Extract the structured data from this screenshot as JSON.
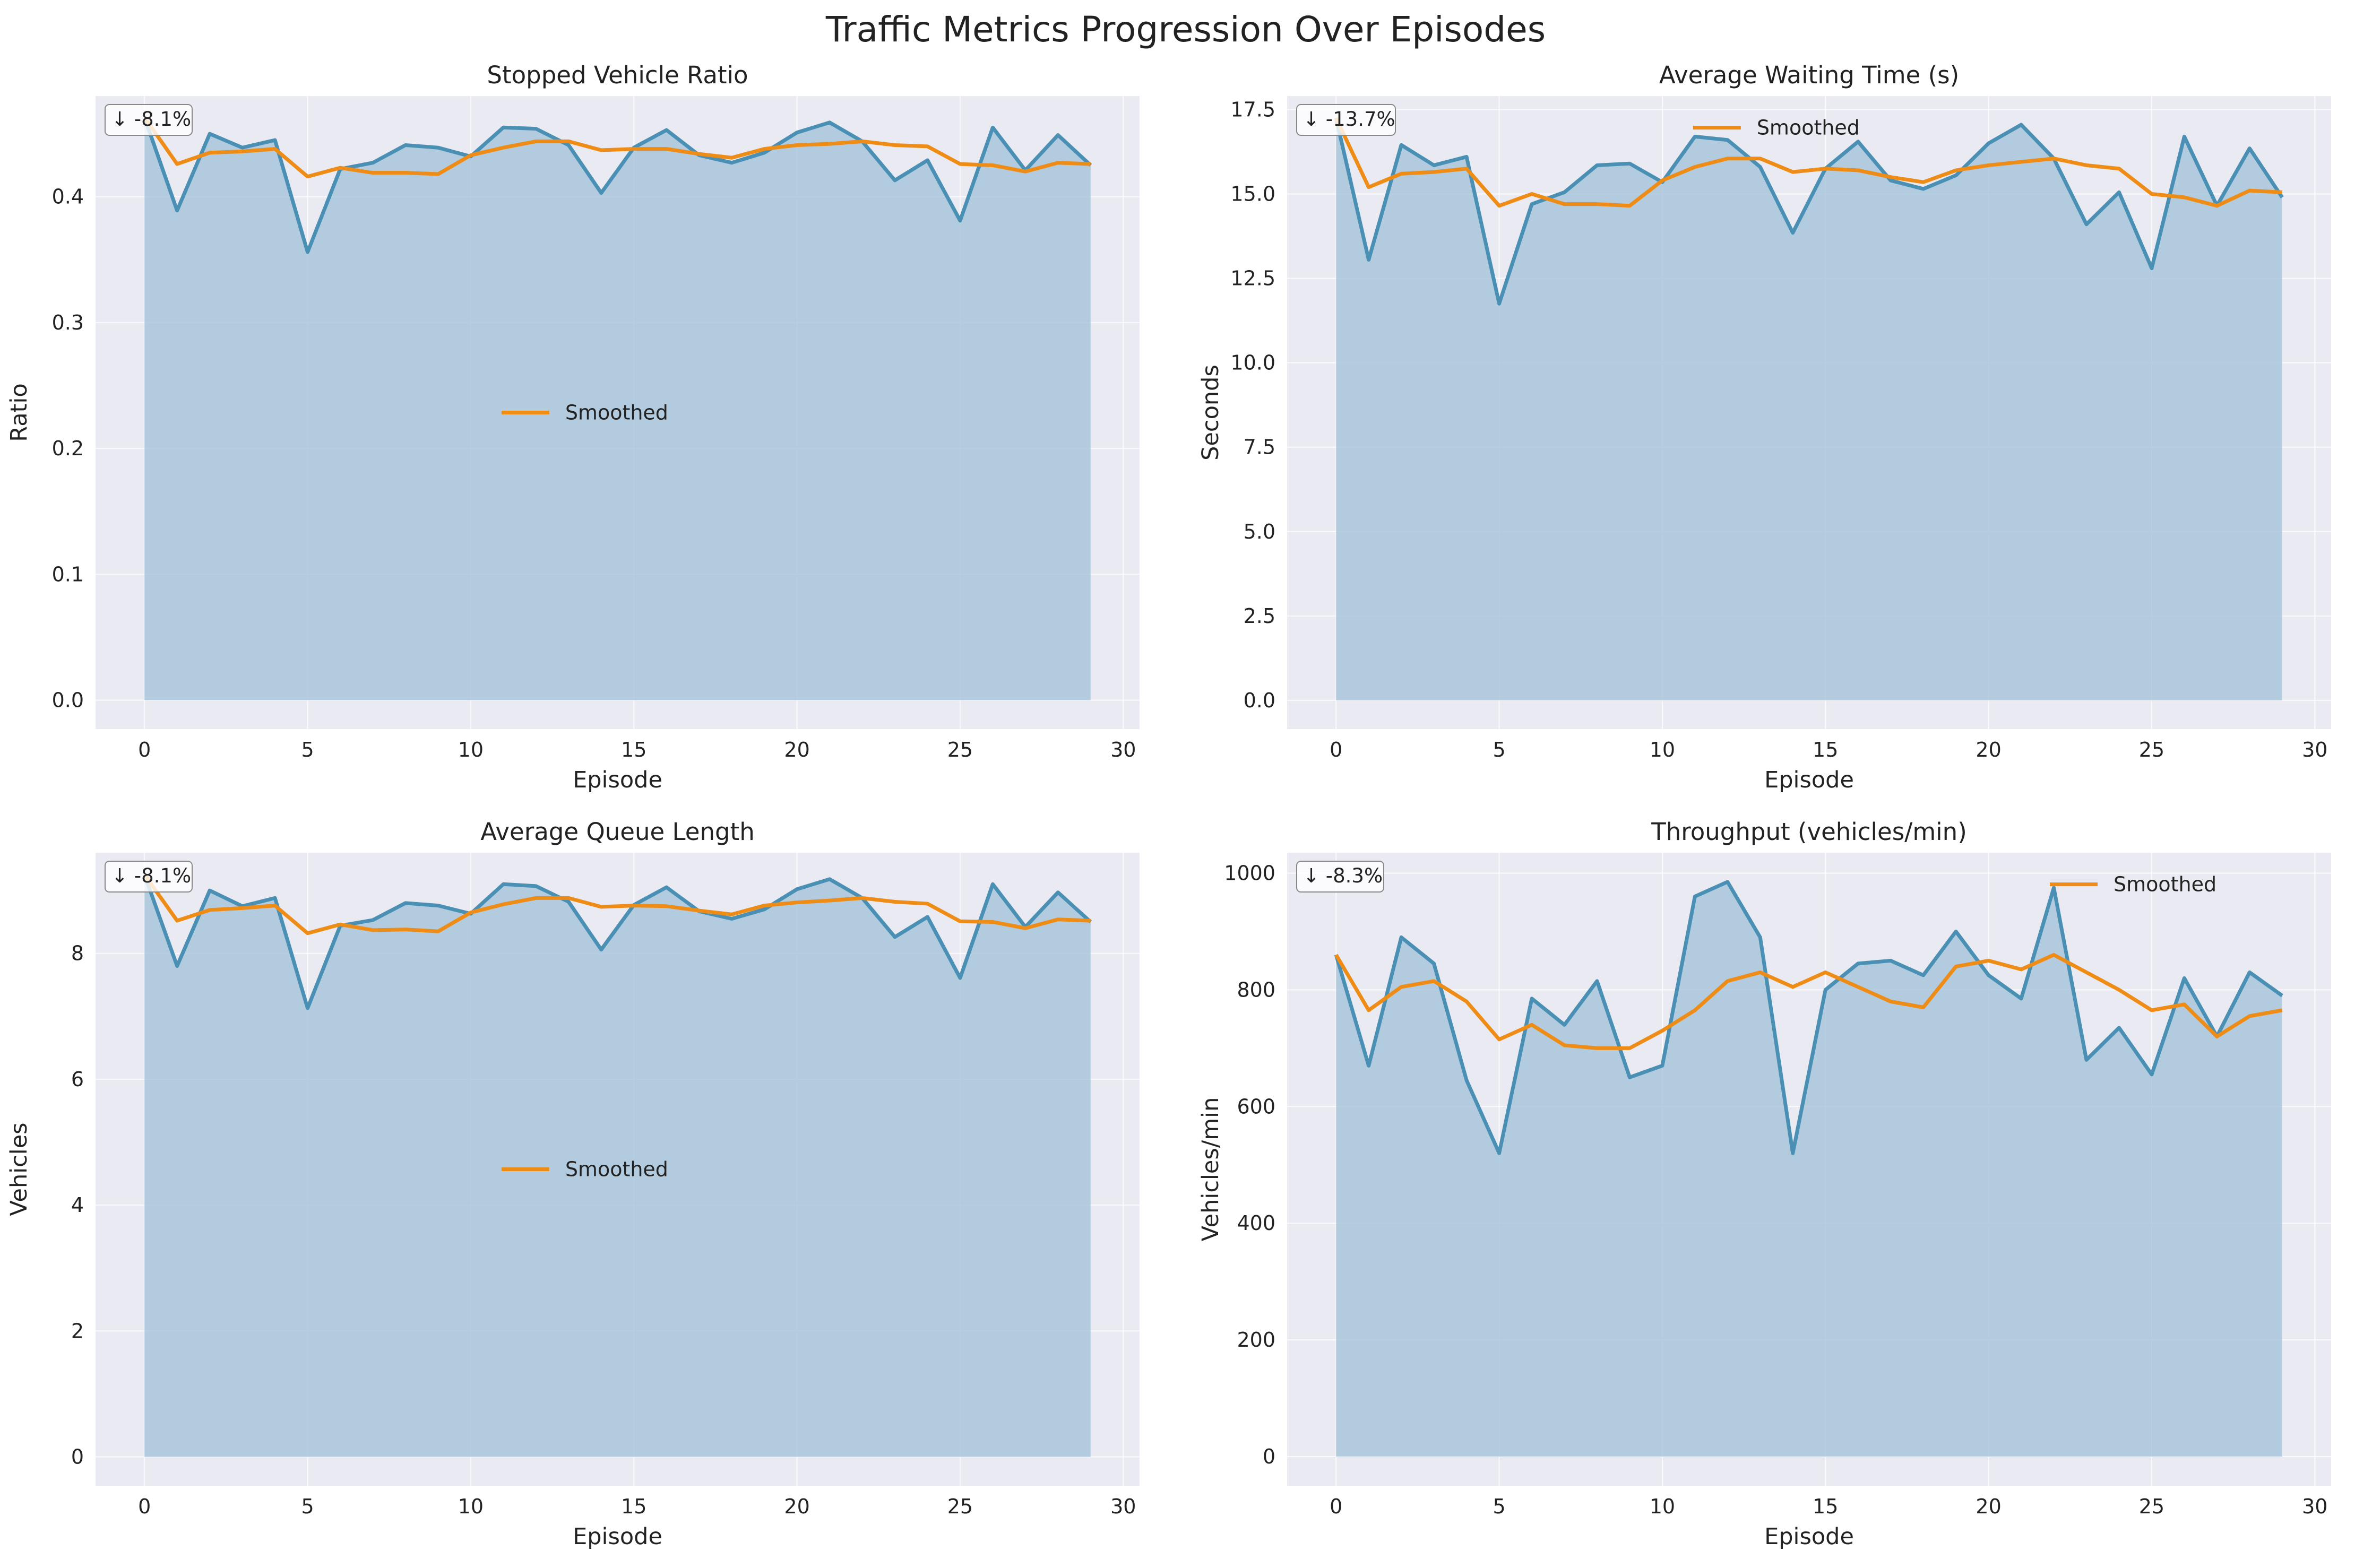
{
  "figure_title": "Traffic Metrics Progression Over Episodes",
  "colors": {
    "series_line": "#4a90b5",
    "area_fill": "#a9c5da",
    "smoothed_line": "#ee8c16",
    "panel_bg": "#eaeaf2",
    "grid": "#ffffff"
  },
  "chart_data": [
    {
      "type": "area",
      "title": "Stopped Vehicle Ratio",
      "xlabel": "Episode",
      "ylabel": "Ratio",
      "xlim": [
        -1.5,
        30.5
      ],
      "ylim": [
        -0.023,
        0.48
      ],
      "xticks": [
        0,
        5,
        10,
        15,
        20,
        25,
        30
      ],
      "yticks": [
        0.0,
        0.1,
        0.2,
        0.3,
        0.4
      ],
      "ytick_labels": [
        "0.0",
        "0.1",
        "0.2",
        "0.3",
        "0.4"
      ],
      "grid": true,
      "legend": "center",
      "annotation": "↓ -8.1%",
      "x": [
        0,
        1,
        2,
        3,
        4,
        5,
        6,
        7,
        8,
        9,
        10,
        11,
        12,
        13,
        14,
        15,
        16,
        17,
        18,
        19,
        20,
        21,
        22,
        23,
        24,
        25,
        26,
        27,
        28,
        29
      ],
      "series": [
        {
          "values": [
            0.463,
            0.389,
            0.45,
            0.439,
            0.445,
            0.356,
            0.422,
            0.427,
            0.441,
            0.439,
            0.432,
            0.455,
            0.454,
            0.441,
            0.403,
            0.439,
            0.453,
            0.433,
            0.427,
            0.435,
            0.451,
            0.459,
            0.444,
            0.413,
            0.429,
            0.381,
            0.455,
            0.421,
            0.449,
            0.425
          ]
        },
        {
          "name": "Smoothed",
          "values": [
            0.463,
            0.426,
            0.435,
            0.436,
            0.438,
            0.416,
            0.423,
            0.419,
            0.419,
            0.418,
            0.433,
            0.439,
            0.444,
            0.444,
            0.437,
            0.438,
            0.438,
            0.434,
            0.431,
            0.438,
            0.441,
            0.442,
            0.444,
            0.441,
            0.44,
            0.426,
            0.425,
            0.42,
            0.427,
            0.426
          ]
        }
      ]
    },
    {
      "type": "area",
      "title": "Average Waiting Time (s)",
      "xlabel": "Episode",
      "ylabel": "Seconds",
      "xlim": [
        -1.5,
        30.5
      ],
      "ylim": [
        -0.85,
        17.9
      ],
      "xticks": [
        0,
        5,
        10,
        15,
        20,
        25,
        30
      ],
      "yticks": [
        0.0,
        2.5,
        5.0,
        7.5,
        10.0,
        12.5,
        15.0,
        17.5
      ],
      "ytick_labels": [
        "0.0",
        "2.5",
        "5.0",
        "7.5",
        "10.0",
        "12.5",
        "15.0",
        "17.5"
      ],
      "grid": true,
      "legend": "upper center",
      "annotation": "↓ -13.7%",
      "x": [
        0,
        1,
        2,
        3,
        4,
        5,
        6,
        7,
        8,
        9,
        10,
        11,
        12,
        13,
        14,
        15,
        16,
        17,
        18,
        19,
        20,
        21,
        22,
        23,
        24,
        25,
        26,
        27,
        28,
        29
      ],
      "series": [
        {
          "values": [
            17.25,
            13.05,
            16.45,
            15.85,
            16.1,
            11.75,
            14.7,
            15.05,
            15.85,
            15.9,
            15.35,
            16.7,
            16.6,
            15.8,
            13.85,
            15.75,
            16.55,
            15.4,
            15.15,
            15.55,
            16.5,
            17.05,
            16.05,
            14.1,
            15.05,
            12.8,
            16.7,
            14.65,
            16.35,
            14.9
          ]
        },
        {
          "name": "Smoothed",
          "values": [
            17.25,
            15.2,
            15.6,
            15.65,
            15.75,
            14.65,
            15.0,
            14.7,
            14.7,
            14.65,
            15.4,
            15.8,
            16.05,
            16.05,
            15.65,
            15.75,
            15.7,
            15.5,
            15.35,
            15.7,
            15.85,
            15.95,
            16.05,
            15.85,
            15.75,
            15.0,
            14.9,
            14.65,
            15.1,
            15.05
          ]
        }
      ]
    },
    {
      "type": "area",
      "title": "Average Queue Length",
      "xlabel": "Episode",
      "ylabel": "Vehicles",
      "xlim": [
        -1.5,
        30.5
      ],
      "ylim": [
        -0.46,
        9.6
      ],
      "xticks": [
        0,
        5,
        10,
        15,
        20,
        25,
        30
      ],
      "yticks": [
        0,
        2,
        4,
        6,
        8
      ],
      "ytick_labels": [
        "0",
        "2",
        "4",
        "6",
        "8"
      ],
      "grid": true,
      "legend": "center",
      "annotation": "↓ -8.1%",
      "x": [
        0,
        1,
        2,
        3,
        4,
        5,
        6,
        7,
        8,
        9,
        10,
        11,
        12,
        13,
        14,
        15,
        16,
        17,
        18,
        19,
        20,
        21,
        22,
        23,
        24,
        25,
        26,
        27,
        28,
        29
      ],
      "series": [
        {
          "values": [
            9.25,
            7.8,
            9.0,
            8.75,
            8.88,
            7.13,
            8.44,
            8.53,
            8.8,
            8.76,
            8.63,
            9.1,
            9.07,
            8.82,
            8.06,
            8.77,
            9.05,
            8.67,
            8.55,
            8.7,
            9.02,
            9.18,
            8.88,
            8.26,
            8.58,
            7.61,
            9.1,
            8.42,
            8.97,
            8.5
          ]
        },
        {
          "name": "Smoothed",
          "values": [
            9.25,
            8.52,
            8.69,
            8.72,
            8.76,
            8.32,
            8.46,
            8.37,
            8.38,
            8.35,
            8.65,
            8.78,
            8.88,
            8.88,
            8.74,
            8.76,
            8.75,
            8.68,
            8.62,
            8.76,
            8.81,
            8.84,
            8.88,
            8.82,
            8.79,
            8.51,
            8.5,
            8.4,
            8.54,
            8.52
          ]
        }
      ]
    },
    {
      "type": "area",
      "title": "Throughput (vehicles/min)",
      "xlabel": "Episode",
      "ylabel": "Vehicles/min",
      "xlim": [
        -1.5,
        30.5
      ],
      "ylim": [
        -50,
        1035
      ],
      "xticks": [
        0,
        5,
        10,
        15,
        20,
        25,
        30
      ],
      "yticks": [
        0,
        200,
        400,
        600,
        800,
        1000
      ],
      "ytick_labels": [
        "0",
        "200",
        "400",
        "600",
        "800",
        "1000"
      ],
      "grid": true,
      "legend": "upper right",
      "annotation": "↓ -8.3%",
      "x": [
        0,
        1,
        2,
        3,
        4,
        5,
        6,
        7,
        8,
        9,
        10,
        11,
        12,
        13,
        14,
        15,
        16,
        17,
        18,
        19,
        20,
        21,
        22,
        23,
        24,
        25,
        26,
        27,
        28,
        29
      ],
      "series": [
        {
          "values": [
            860,
            670,
            890,
            845,
            645,
            520,
            785,
            740,
            815,
            650,
            670,
            960,
            985,
            890,
            520,
            800,
            845,
            850,
            825,
            900,
            825,
            785,
            975,
            680,
            735,
            655,
            820,
            720,
            830,
            790
          ]
        },
        {
          "name": "Smoothed",
          "values": [
            860,
            765,
            805,
            815,
            780,
            715,
            740,
            705,
            700,
            700,
            730,
            765,
            815,
            830,
            805,
            830,
            805,
            780,
            770,
            840,
            850,
            835,
            860,
            830,
            800,
            765,
            775,
            720,
            755,
            765
          ]
        }
      ]
    }
  ]
}
